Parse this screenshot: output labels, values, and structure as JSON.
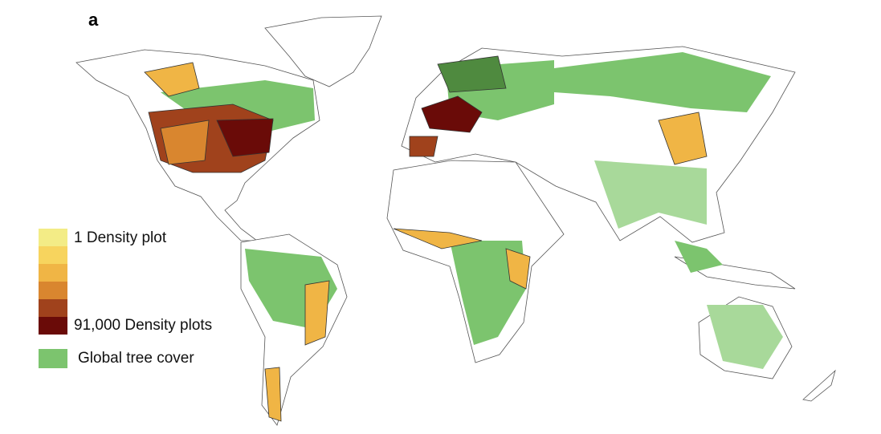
{
  "panel_label": "a",
  "legend": {
    "density_colors": [
      "#f3ec86",
      "#f7d45e",
      "#f0b545",
      "#d9862f",
      "#a0421c",
      "#6a0b08"
    ],
    "density_min_label": "1 Density plot",
    "density_max_label": "91,000 Density plots",
    "tree_cover_color": "#7cc46e",
    "tree_cover_label": "Global tree cover"
  }
}
